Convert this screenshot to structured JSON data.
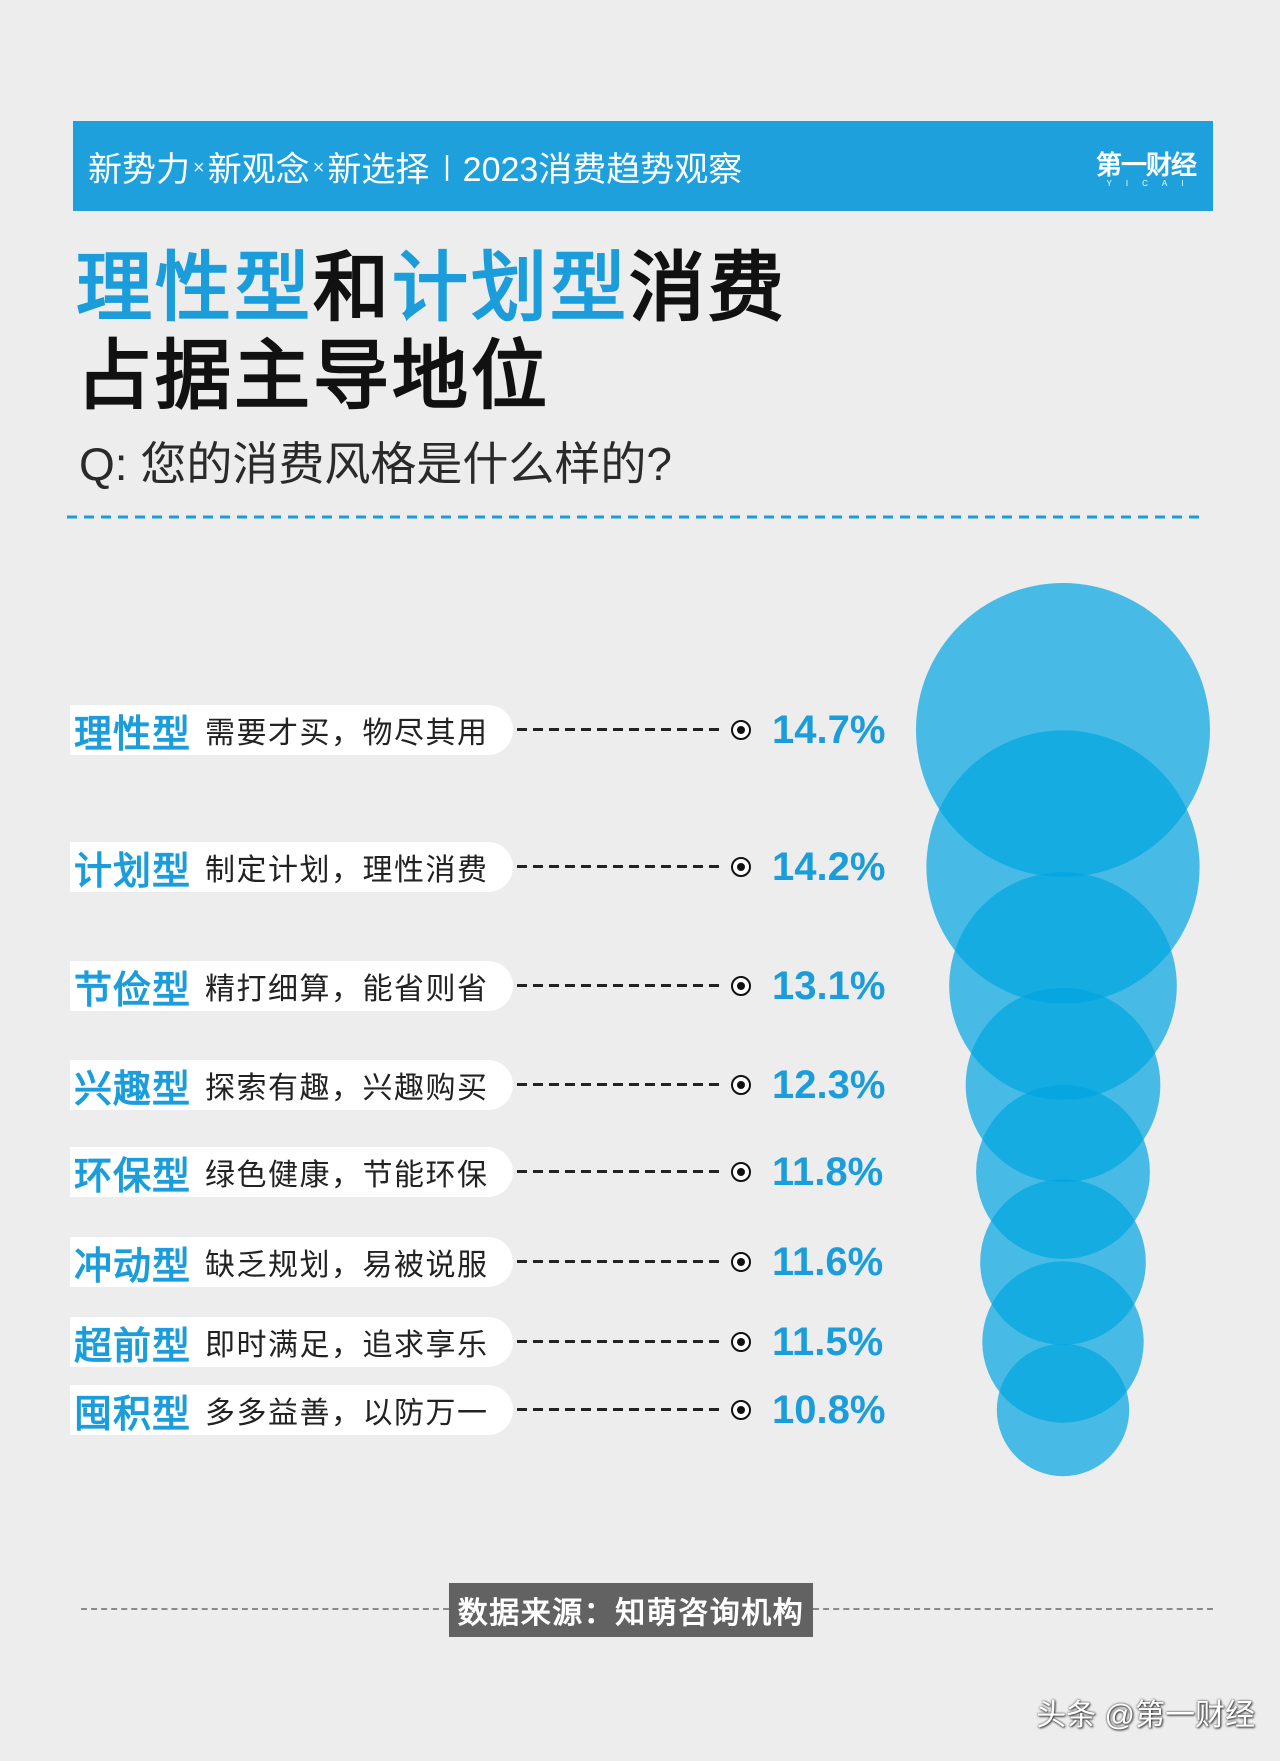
{
  "header": {
    "topics": [
      "新势力",
      "新观念",
      "新选择"
    ],
    "separator": "×",
    "divider": "|",
    "subtitle": "2023消费趋势观察",
    "logo": "第一财经",
    "logo_sub": "YICAI"
  },
  "title": {
    "line1": [
      "理性型",
      "和",
      "计划型",
      "消费"
    ],
    "line2": "占据主导地位"
  },
  "question": "Q: 您的消费风格是什么样的?",
  "chart_data": {
    "type": "bar",
    "categories": [
      "理性型",
      "计划型",
      "节俭型",
      "兴趣型",
      "环保型",
      "冲动型",
      "超前型",
      "囤积型"
    ],
    "descriptions": [
      "需要才买，物尽其用",
      "制定计划，理性消费",
      "精打细算，能省则省",
      "探索有趣，兴趣购买",
      "绿色健康，节能环保",
      "缺乏规划，易被说服",
      "即时满足，追求享乐",
      "多多益善，以防万一"
    ],
    "values": [
      14.7,
      14.2,
      13.1,
      12.3,
      11.8,
      11.6,
      11.5,
      10.8
    ],
    "value_labels": [
      "14.7%",
      "14.2%",
      "13.1%",
      "12.3%",
      "11.8%",
      "11.6%",
      "11.5%",
      "10.8%"
    ]
  },
  "source": "数据来源：知萌咨询机构",
  "watermark": "头条 @第一财经",
  "colors": {
    "accent": "#1b9ddb",
    "header_bg": "#1ea0dc",
    "bubble": "#00a5e1",
    "source_bg": "#626262",
    "page_bg": "#ededed"
  }
}
